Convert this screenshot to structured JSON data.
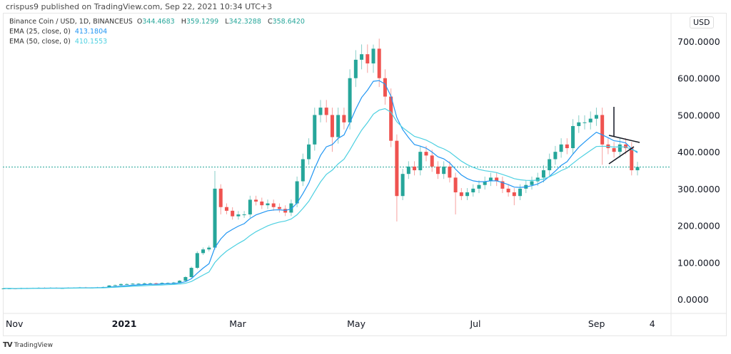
{
  "publisher_line": "crispus9 published on TradingView.com, Sep 22, 2021 10:34 UTC+3",
  "legend": {
    "symbol": "Binance Coin / USD, 1D, BINANCEUS",
    "o_label": "O",
    "o": "344.4683",
    "h_label": "H",
    "h": "359.1299",
    "l_label": "L",
    "l": "342.3288",
    "c_label": "C",
    "c": "358.6420",
    "ema25_label": "EMA (25, close, 0)",
    "ema25": "413.1804",
    "ema50_label": "EMA (50, close, 0)",
    "ema50": "410.1553"
  },
  "currency_button": "USD",
  "footer_brand": "TradingView",
  "colors": {
    "up": "#26a69a",
    "down": "#ef5350",
    "ema25": "#2196f3",
    "ema50": "#4dd0e1",
    "last_price": "#26a69a"
  },
  "chart_data": {
    "type": "candlestick",
    "title": "Binance Coin / USD, 1D, BINANCEUS",
    "ylim": [
      -30,
      745
    ],
    "y_ticks": [
      "700.0000",
      "600.0000",
      "500.0000",
      "400.0000",
      "300.0000",
      "200.0000",
      "100.0000",
      "0.0000"
    ],
    "y_tick_values": [
      700,
      600,
      500,
      400,
      300,
      200,
      100,
      0
    ],
    "x_ticks": [
      {
        "label": "Nov",
        "bold": false,
        "frac": 0.0
      },
      {
        "label": "2021",
        "bold": true,
        "frac": 0.187
      },
      {
        "label": "Mar",
        "bold": false,
        "frac": 0.366
      },
      {
        "label": "May",
        "bold": false,
        "frac": 0.553
      },
      {
        "label": "Jul",
        "bold": false,
        "frac": 0.741
      },
      {
        "label": "Sep",
        "bold": false,
        "frac": 0.932
      },
      {
        "label": "4",
        "bold": false,
        "frac": 1.02
      }
    ],
    "last_price": 358.642,
    "candle_step_days": 3,
    "closes": [
      29,
      29,
      28,
      30,
      29,
      30,
      31,
      30,
      31,
      30,
      30,
      31,
      31,
      32,
      31,
      31,
      32,
      33,
      37,
      38,
      41,
      41,
      42,
      42,
      43,
      43,
      42,
      44,
      44,
      45,
      50,
      60,
      85,
      125,
      135,
      140,
      300,
      250,
      240,
      225,
      230,
      230,
      270,
      265,
      255,
      260,
      250,
      245,
      235,
      260,
      320,
      380,
      420,
      500,
      520,
      500,
      440,
      500,
      480,
      600,
      650,
      665,
      640,
      680,
      600,
      550,
      430,
      280,
      340,
      360,
      350,
      400,
      390,
      360,
      340,
      360,
      330,
      290,
      280,
      290,
      300,
      310,
      320,
      330,
      320,
      300,
      290,
      280,
      300,
      310,
      320,
      330,
      350,
      380,
      400,
      420,
      410,
      470,
      480,
      480,
      490,
      500,
      420,
      410,
      400,
      420,
      410,
      350,
      358.64
    ],
    "wick_overrides": {
      "36": {
        "h": 348
      },
      "37": {
        "l": 230
      },
      "56": {
        "l": 400
      },
      "63": {
        "h": 691
      },
      "67": {
        "l": 211
      },
      "77": {
        "l": 230
      },
      "87": {
        "l": 255
      },
      "101": {
        "h": 520
      },
      "102": {
        "l": 365
      }
    },
    "series": [
      {
        "name": "EMA (25, close, 0)",
        "last": 413.1804
      },
      {
        "name": "EMA (50, close, 0)",
        "last": 410.1553
      }
    ],
    "annotations": [
      "triangle pattern drawing (black trend lines) near Sep"
    ]
  }
}
